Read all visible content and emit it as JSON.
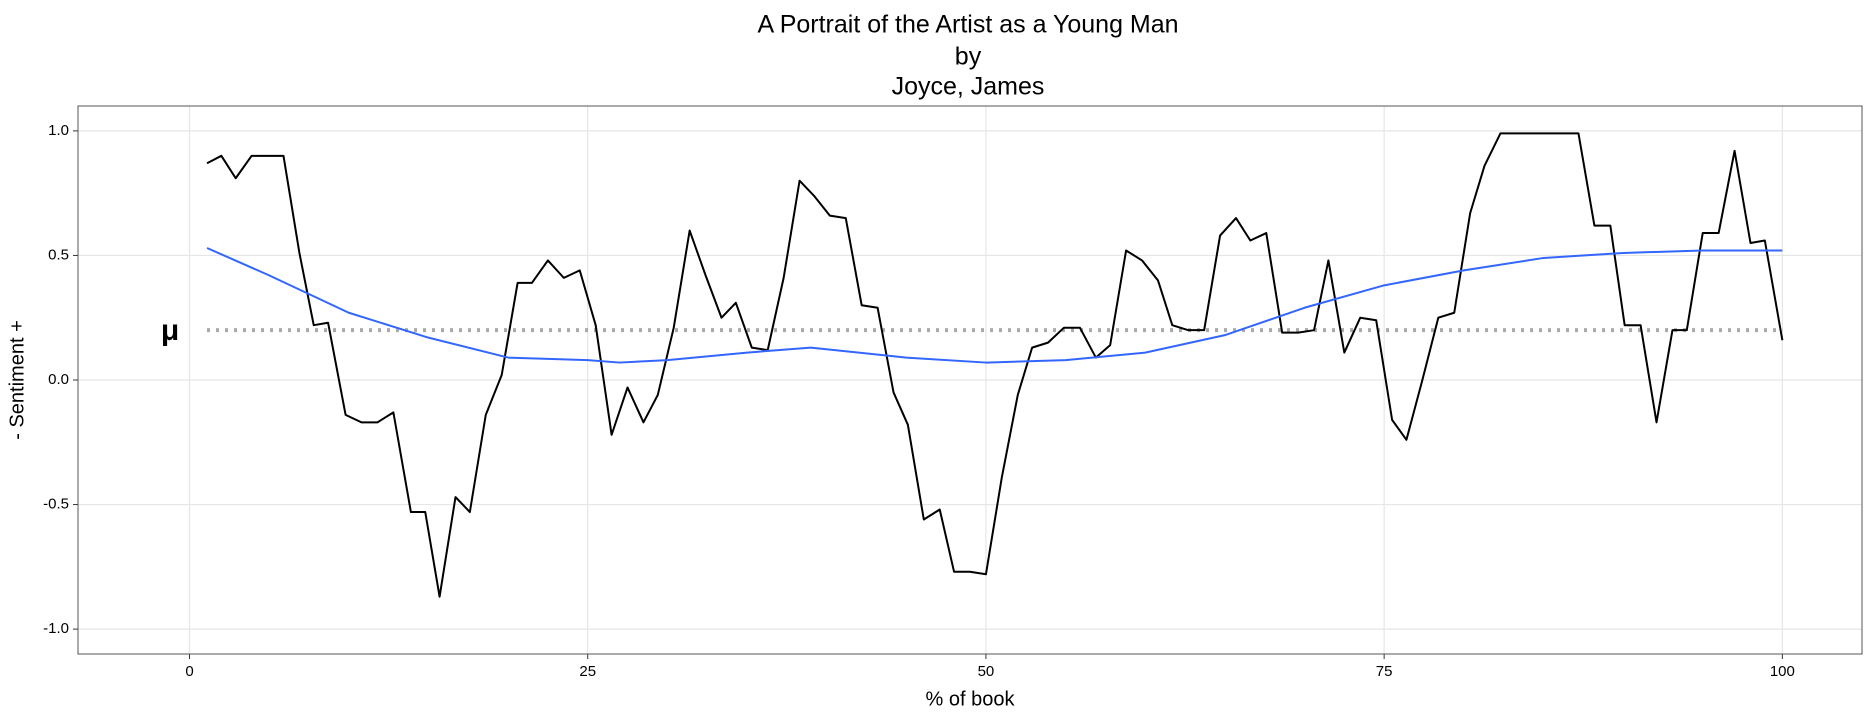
{
  "chart_data": {
    "type": "line",
    "title": [
      "A Portrait of the Artist as a Young Man",
      "by",
      "Joyce, James"
    ],
    "x_label": "% of book",
    "y_label": "- Sentiment +",
    "xlim": [
      -7,
      105
    ],
    "xticks": [
      0,
      25,
      50,
      75,
      100
    ],
    "ylim": [
      -1.1,
      1.1
    ],
    "yticks": [
      {
        "value": 1,
        "label": "1.0"
      },
      {
        "value": 0.5,
        "label": "0.5"
      },
      {
        "value": 0,
        "label": "0.0"
      },
      {
        "value": -0.5,
        "label": "-0.5"
      },
      {
        "value": -1,
        "label": "-1.0"
      }
    ],
    "grid": true,
    "reference_line": {
      "value": 0.2,
      "label": "μ",
      "color": "#aaaaaa"
    },
    "series": [
      {
        "color": "#000000",
        "x": [
          1.1,
          2.0,
          2.9,
          3.9,
          5.9,
          6.9,
          7.8,
          8.7,
          9.8,
          10.8,
          11.8,
          12.8,
          13.9,
          14.8,
          15.7,
          16.7,
          17.6,
          18.6,
          19.6,
          20.6,
          21.5,
          22.5,
          23.5,
          24.5,
          25.5,
          26.5,
          27.5,
          28.5,
          29.4,
          30.4,
          31.4,
          32.4,
          33.4,
          34.3,
          35.3,
          36.3,
          37.3,
          38.3,
          39.2,
          40.2,
          41.2,
          42.2,
          43.2,
          44.2,
          45.1,
          46.1,
          47.1,
          48.0,
          49.0,
          50.0,
          51.0,
          52.0,
          52.9,
          53.9,
          54.9,
          55.9,
          56.9,
          57.8,
          58.8,
          59.8,
          60.8,
          61.7,
          62.7,
          63.7,
          64.7,
          65.7,
          66.6,
          67.6,
          68.6,
          69.6,
          70.6,
          71.5,
          72.5,
          73.5,
          74.5,
          75.5,
          76.4,
          77.4,
          78.4,
          79.4,
          80.4,
          81.3,
          82.3,
          83.3,
          85.2,
          87.2,
          88.2,
          89.2,
          90.1,
          91.1,
          92.1,
          93.1,
          94.0,
          95.0,
          96.0,
          97.0,
          98.0,
          98.9,
          100
        ],
        "values": [
          0.87,
          0.9,
          0.81,
          0.9,
          0.9,
          0.51,
          0.22,
          0.23,
          -0.14,
          -0.17,
          -0.17,
          -0.13,
          -0.53,
          -0.53,
          -0.87,
          -0.47,
          -0.53,
          -0.14,
          0.02,
          0.39,
          0.39,
          0.48,
          0.41,
          0.44,
          0.22,
          -0.22,
          -0.03,
          -0.17,
          -0.06,
          0.21,
          0.6,
          0.42,
          0.25,
          0.31,
          0.13,
          0.12,
          0.41,
          0.8,
          0.74,
          0.66,
          0.65,
          0.3,
          0.29,
          -0.05,
          -0.18,
          -0.56,
          -0.52,
          -0.77,
          -0.77,
          -0.78,
          -0.39,
          -0.06,
          0.13,
          0.15,
          0.21,
          0.21,
          0.09,
          0.14,
          0.52,
          0.48,
          0.4,
          0.22,
          0.2,
          0.2,
          0.58,
          0.65,
          0.56,
          0.59,
          0.19,
          0.19,
          0.2,
          0.48,
          0.11,
          0.25,
          0.24,
          -0.16,
          -0.24,
          0.0,
          0.25,
          0.27,
          0.67,
          0.86,
          0.99,
          0.99,
          0.99,
          0.99,
          0.62,
          0.62,
          0.22,
          0.22,
          -0.17,
          0.2,
          0.2,
          0.59,
          0.59,
          0.92,
          0.55,
          0.56,
          0.16
        ]
      },
      {
        "color": "#3366ff",
        "x": [
          1.1,
          5,
          10,
          15,
          20,
          25,
          27,
          30,
          35,
          39,
          45,
          50,
          55,
          60,
          65,
          70,
          75,
          80,
          85,
          90,
          95,
          100
        ],
        "values": [
          0.53,
          0.42,
          0.27,
          0.17,
          0.09,
          0.08,
          0.07,
          0.08,
          0.11,
          0.13,
          0.09,
          0.07,
          0.08,
          0.11,
          0.18,
          0.29,
          0.38,
          0.44,
          0.49,
          0.51,
          0.52,
          0.52
        ]
      }
    ]
  }
}
